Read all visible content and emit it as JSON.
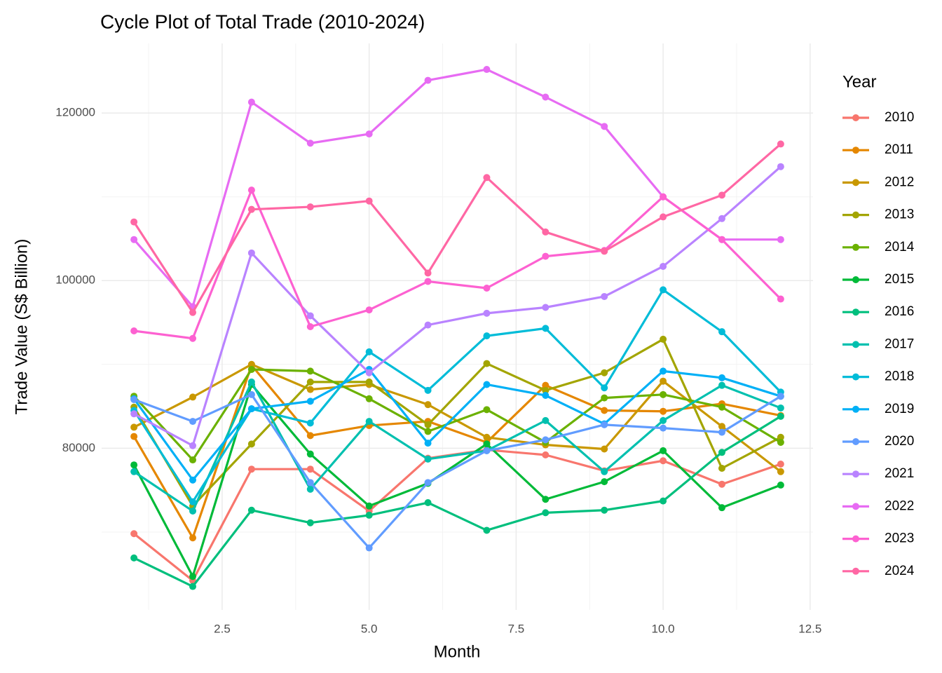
{
  "chart_data": {
    "type": "line",
    "title": "Cycle Plot of Total Trade (2010-2024)",
    "x_label": "Month",
    "y_label": "Trade Value (S$ Billion)",
    "legend_title": "Year",
    "legend_position": "right",
    "grid": true,
    "x": [
      1,
      2,
      3,
      4,
      5,
      6,
      7,
      8,
      9,
      10,
      11,
      12
    ],
    "xlim": [
      0.45,
      12.55
    ],
    "xticks": [
      2.5,
      {
        "value": 5,
        "label": "5.0"
      },
      7.5,
      {
        "value": 10,
        "label": "10.0"
      },
      12.5
    ],
    "xminor": [
      1.25,
      3.75,
      6.25,
      8.75,
      11.25
    ],
    "ylim": [
      60700,
      128300
    ],
    "yticks": [
      80000,
      100000,
      120000
    ],
    "yminor": [
      70000,
      90000,
      110000
    ],
    "series": [
      {
        "name": "2010",
        "color": "#F8766D",
        "values": [
          69800,
          64200,
          77500,
          77500,
          72500,
          78800,
          79800,
          79200,
          77300,
          78500,
          75700,
          78100
        ]
      },
      {
        "name": "2011",
        "color": "#E58700",
        "values": [
          81400,
          69300,
          89900,
          81500,
          82700,
          83200,
          80700,
          87500,
          84500,
          84400,
          85300,
          83900
        ]
      },
      {
        "name": "2012",
        "color": "#C99800",
        "values": [
          82500,
          86100,
          90000,
          87000,
          87600,
          85200,
          81300,
          80400,
          79900,
          88000,
          82600,
          77200
        ]
      },
      {
        "name": "2013",
        "color": "#A3A500",
        "values": [
          84900,
          73100,
          80500,
          87900,
          87900,
          82800,
          90100,
          86900,
          89000,
          93000,
          77600,
          81300
        ]
      },
      {
        "name": "2014",
        "color": "#6BB100",
        "values": [
          86200,
          78600,
          89400,
          89200,
          85900,
          82000,
          84600,
          80700,
          86000,
          86400,
          84900,
          80700
        ]
      },
      {
        "name": "2015",
        "color": "#00BA38",
        "values": [
          78000,
          64700,
          87600,
          79300,
          73100,
          75800,
          80500,
          73900,
          76000,
          79700,
          72900,
          75600
        ]
      },
      {
        "name": "2016",
        "color": "#00BF7D",
        "values": [
          66900,
          63500,
          72600,
          71100,
          72000,
          73500,
          70200,
          72300,
          72600,
          73700,
          79500,
          83800
        ]
      },
      {
        "name": "2017",
        "color": "#00C0AF",
        "values": [
          77200,
          72500,
          87900,
          75100,
          83200,
          78700,
          79700,
          83300,
          77200,
          83300,
          87500,
          84800
        ]
      },
      {
        "name": "2018",
        "color": "#00BCD8",
        "values": [
          84500,
          73600,
          84700,
          83000,
          91500,
          86900,
          93400,
          94300,
          87200,
          98900,
          93900,
          86700
        ]
      },
      {
        "name": "2019",
        "color": "#00B0F6",
        "values": [
          85900,
          76200,
          84700,
          85600,
          89400,
          80600,
          87600,
          86300,
          82900,
          89200,
          88400,
          86200
        ]
      },
      {
        "name": "2020",
        "color": "#619CFF",
        "values": [
          85800,
          83200,
          86400,
          75900,
          68100,
          75900,
          79700,
          81000,
          82800,
          82400,
          81900,
          86200
        ]
      },
      {
        "name": "2021",
        "color": "#B983FF",
        "values": [
          84100,
          80300,
          103300,
          95800,
          89000,
          94700,
          96100,
          96800,
          98100,
          101700,
          107400,
          113600
        ]
      },
      {
        "name": "2022",
        "color": "#E76BF3",
        "values": [
          104900,
          96900,
          121300,
          116400,
          117500,
          123900,
          125200,
          121900,
          118400,
          110000,
          104900,
          104900
        ]
      },
      {
        "name": "2023",
        "color": "#FD61D1",
        "values": [
          94000,
          93100,
          110800,
          94500,
          96500,
          99900,
          99100,
          102900,
          103600,
          110000,
          104900,
          97800
        ]
      },
      {
        "name": "2024",
        "color": "#FF67A4",
        "values": [
          107000,
          96200,
          108500,
          108800,
          109500,
          100900,
          112300,
          105800,
          103500,
          107600,
          110200,
          116300
        ]
      }
    ]
  }
}
